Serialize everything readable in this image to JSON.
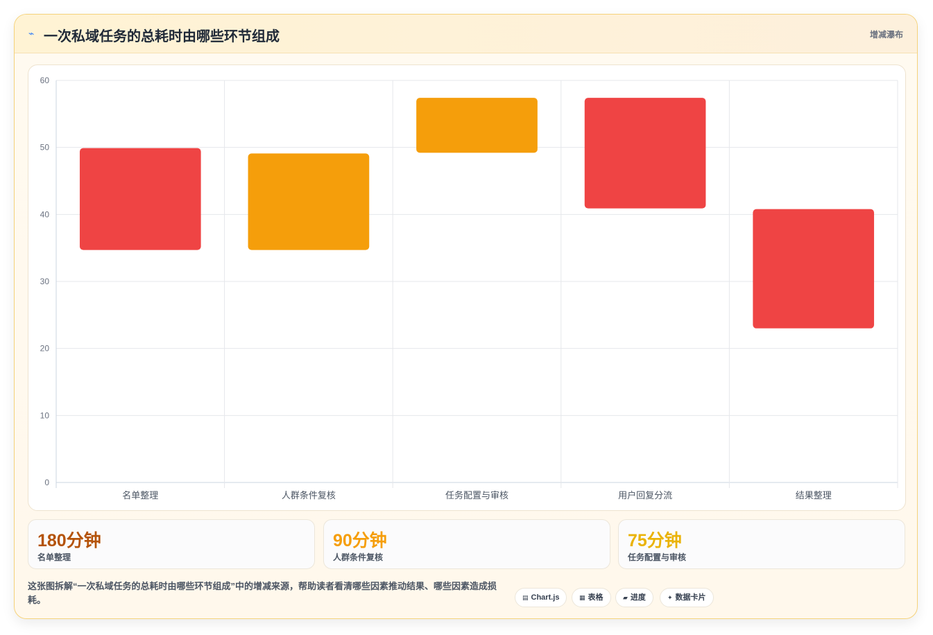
{
  "header": {
    "icon": "lightning-icon",
    "title": "一次私域任务的总耗时由哪些环节组成",
    "tag": "增减瀑布"
  },
  "chart_data": {
    "type": "bar",
    "subtype": "floating-waterfall",
    "categories": [
      "名单整理",
      "人群条件复核",
      "任务配置与审核",
      "用户回复分流",
      "结果整理"
    ],
    "series": [
      {
        "values": [
          [
            34.7,
            49.9
          ],
          [
            34.7,
            49.1
          ],
          [
            49.2,
            57.4
          ],
          [
            40.9,
            57.4
          ],
          [
            23.0,
            40.8
          ]
        ]
      }
    ],
    "bar_colors": [
      "#ef4444",
      "#f59e0b",
      "#f59e0b",
      "#ef4444",
      "#ef4444"
    ],
    "ylim": [
      0,
      60
    ],
    "yticks": [
      0,
      10,
      20,
      30,
      40,
      50,
      60
    ],
    "grid": true,
    "legend": "none"
  },
  "stats": [
    {
      "value": "180分钟",
      "label": "名单整理",
      "color": "#b45309"
    },
    {
      "value": "90分钟",
      "label": "人群条件复核",
      "color": "#f59e0b"
    },
    {
      "value": "75分钟",
      "label": "任务配置与审核",
      "color": "#eab308"
    }
  ],
  "description": "这张图拆解“一次私域任务的总耗时由哪些环节组成”中的增减来源，帮助读者看清哪些因素推动结果、哪些因素造成损耗。",
  "chips": [
    {
      "icon": "▤",
      "label": "Chart.js"
    },
    {
      "icon": "▦",
      "label": "表格"
    },
    {
      "icon": "▰",
      "label": "进度"
    },
    {
      "icon": "✦",
      "label": "数据卡片"
    }
  ]
}
